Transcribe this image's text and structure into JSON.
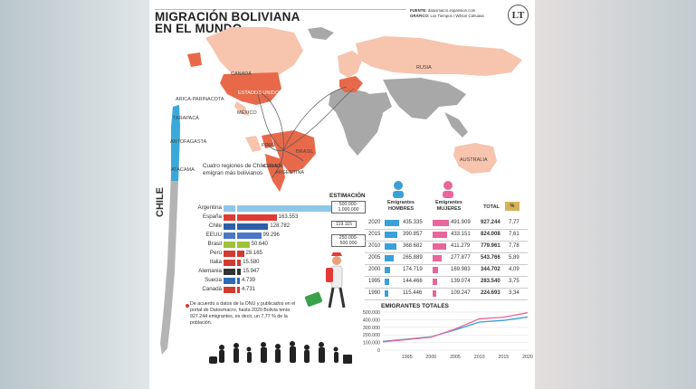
{
  "header": {
    "title_line1": "MIGRACIÓN BOLIVIANA",
    "title_line2": "EN EL MUNDO",
    "source_label": "FUENTE:",
    "source_value": "datosmacro.expansion.com",
    "graphic_label": "GRÁFICO:",
    "graphic_value": "Los Tiempos / Wilson Cahuasa",
    "logo_text": "LT"
  },
  "map": {
    "labels": [
      "CANADÁ",
      "RUSIA",
      "ESTADOS UNIDOS",
      "MÉXICO",
      "PERÚ",
      "BRASIL",
      "CHILE",
      "ARGENTINA",
      "AUSTRALIA"
    ],
    "chile_regions": [
      "ARICA-PARINACOTA",
      "TARAPACÁ",
      "ANTOFAGASTA",
      "ATACAMA"
    ],
    "chile_title": "CHILE",
    "regions_note": "Cuatro regiones de Chile donde emigran más bolivianos",
    "colors": {
      "highlight": "#e8694a",
      "light": "#f7c4ae",
      "gray": "#a8a8a8",
      "chile_regions": "#39a9d9"
    }
  },
  "chart_data": [
    {
      "type": "bar",
      "title": "",
      "categories": [
        "Argentina",
        "España",
        "Chile",
        "EEUU",
        "Brasil",
        "Perú",
        "Italia",
        "Alemania",
        "Suecia",
        "Canadá"
      ],
      "values": [
        423136,
        163553,
        128782,
        99296,
        50640,
        28165,
        15580,
        15947,
        4739,
        4731
      ],
      "value_labels": [
        "423.136",
        "163.553",
        "128.782",
        "99.296",
        "50.640",
        "28.165",
        "15.580",
        "15.947",
        "4.739",
        "4.731"
      ],
      "bar_colors": [
        "#8ec6e8",
        "#e03b33",
        "#2c5fa8",
        "#4b78c4",
        "#9fc23a",
        "#d13b30",
        "#d13b30",
        "#333333",
        "#2d6bb3",
        "#d13b30"
      ],
      "estimation": {
        "title": "ESTIMACIÓN",
        "ranges": [
          "500.000-1.000.000",
          "119.115",
          "250.000-500.000"
        ]
      }
    },
    {
      "type": "table",
      "columns": [
        "Emigrantes HOMBRES",
        "Emigrantes MUJERES",
        "TOTAL",
        "%"
      ],
      "rows": [
        {
          "year": "2020",
          "men": "435.335",
          "women": "491.909",
          "total": "927.244",
          "pct": "7,77"
        },
        {
          "year": "2015",
          "men": "390.857",
          "women": "433.151",
          "total": "824.008",
          "pct": "7,61"
        },
        {
          "year": "2010",
          "men": "368.682",
          "women": "411.279",
          "total": "779.961",
          "pct": "7,78"
        },
        {
          "year": "2005",
          "men": "265.889",
          "women": "277.877",
          "total": "543.766",
          "pct": "5,89"
        },
        {
          "year": "2000",
          "men": "174.719",
          "women": "169.983",
          "total": "344.702",
          "pct": "4,09"
        },
        {
          "year": "1995",
          "men": "144.466",
          "women": "139.074",
          "total": "283.540",
          "pct": "3,75"
        },
        {
          "year": "1990",
          "men": "115.446",
          "women": "109.247",
          "total": "224.693",
          "pct": "3,34"
        }
      ],
      "men_values": [
        435335,
        390857,
        368682,
        265889,
        174719,
        144466,
        115446
      ],
      "women_values": [
        491909,
        433151,
        411279,
        277877,
        169983,
        139074,
        109247
      ],
      "colors": {
        "men": "#3aa0d8",
        "women": "#e8669a",
        "pct": "#d6b25a"
      }
    },
    {
      "type": "line",
      "title": "EMIGRANTES TOTALES",
      "x": [
        1990,
        1995,
        2000,
        2005,
        2010,
        2015,
        2020
      ],
      "x_tick_labels": [
        "1995",
        "2000",
        "2005",
        "2010",
        "2015",
        "2020"
      ],
      "y_tick_labels": [
        "500.000",
        "400.000",
        "300.000",
        "200.000",
        "100.000",
        "0"
      ],
      "ylim": [
        0,
        500000
      ],
      "series": [
        {
          "color": "#3aa0d8",
          "values": [
            115446,
            144466,
            174719,
            265889,
            368682,
            390857,
            435335
          ]
        },
        {
          "color": "#e8669a",
          "values": [
            109247,
            139074,
            169983,
            277877,
            411279,
            433151,
            491909
          ]
        }
      ]
    }
  ],
  "note": "De acuerdo a datos de la ONU y publicados en el portal de Datosmacro, hasta 2020 Bolivia tenía 927.244 emigrantes, es decir, un 7,77 % de la población."
}
